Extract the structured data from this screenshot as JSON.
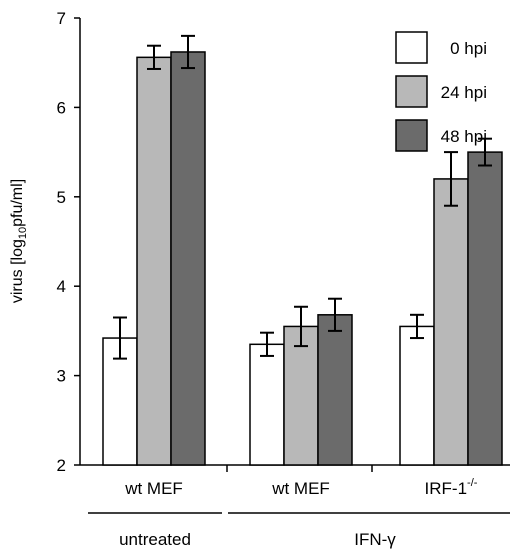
{
  "chart_data": {
    "type": "bar",
    "ylabel_prefix": "virus [log",
    "ylabel_sub": "10",
    "ylabel_suffix": "pfu/ml]",
    "ylim": [
      2,
      7
    ],
    "yticks": [
      "2",
      "3",
      "4",
      "5",
      "6",
      "7"
    ],
    "categories": [
      "wt MEF",
      "wt MEF",
      "IRF-1"
    ],
    "category_superscripts": [
      "",
      "",
      "-/-"
    ],
    "groups": [
      {
        "label": "untreated",
        "categories": [
          0
        ]
      },
      {
        "label": "IFN-γ",
        "categories": [
          1,
          2
        ]
      }
    ],
    "series": [
      {
        "name": "0 hpi",
        "color": "#ffffff",
        "values": [
          3.42,
          3.35,
          3.55
        ],
        "errors": [
          0.23,
          0.13,
          0.13
        ]
      },
      {
        "name": "24 hpi",
        "color": "#b8b8b8",
        "values": [
          6.56,
          3.55,
          5.2
        ],
        "errors": [
          0.13,
          0.22,
          0.3
        ]
      },
      {
        "name": "48 hpi",
        "color": "#6b6b6b",
        "values": [
          6.62,
          3.68,
          5.5
        ],
        "errors": [
          0.18,
          0.18,
          0.15
        ]
      }
    ],
    "legend_position": "top-right",
    "grid": false
  }
}
